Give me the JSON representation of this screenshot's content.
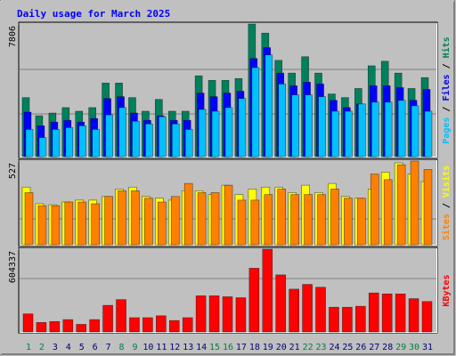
{
  "chart_data": [
    {
      "type": "bar",
      "title": "Daily usage for March 2025",
      "categories": [
        "1",
        "2",
        "3",
        "4",
        "5",
        "6",
        "7",
        "8",
        "9",
        "10",
        "11",
        "12",
        "13",
        "14",
        "15",
        "16",
        "17",
        "18",
        "19",
        "20",
        "21",
        "22",
        "23",
        "24",
        "25",
        "26",
        "27",
        "28",
        "29",
        "30",
        "31"
      ],
      "category_colors": [
        "#008040",
        "#008040",
        "#000080",
        "#000080",
        "#000080",
        "#000080",
        "#000080",
        "#008040",
        "#008040",
        "#000080",
        "#000080",
        "#000080",
        "#000080",
        "#000080",
        "#008040",
        "#008040",
        "#000080",
        "#000080",
        "#000080",
        "#000080",
        "#000080",
        "#008040",
        "#008040",
        "#000080",
        "#000080",
        "#000080",
        "#000080",
        "#000080",
        "#008040",
        "#008040",
        "#000080"
      ],
      "legend_separator": " / ",
      "ylim": [
        0,
        7806
      ],
      "yticks": [
        7806
      ],
      "series": [
        {
          "name": "Hits",
          "color": "#00805c",
          "values": [
            3475,
            2406,
            2566,
            2887,
            2673,
            2887,
            4331,
            4331,
            3475,
            2673,
            3368,
            2673,
            2673,
            4758,
            4491,
            4491,
            4598,
            7806,
            7271,
            5667,
            4918,
            5881,
            4918,
            3689,
            3475,
            4010,
            5346,
            5614,
            4918,
            4010,
            4651
          ]
        },
        {
          "name": "Files",
          "color": "#0000ff",
          "values": [
            2620,
            1818,
            2032,
            2139,
            2032,
            2245,
            3422,
            3529,
            2566,
            2139,
            2406,
            2139,
            2139,
            3743,
            3529,
            3743,
            3850,
            5774,
            6416,
            4918,
            4170,
            4384,
            4277,
            3315,
            2887,
            3101,
            4170,
            4170,
            4063,
            3315,
            3956
          ]
        },
        {
          "name": "Pages",
          "color": "#00c0ff",
          "values": [
            1604,
            1123,
            1604,
            1711,
            1818,
            1604,
            2459,
            2887,
            2085,
            1925,
            2352,
            1925,
            1604,
            2780,
            2673,
            2887,
            3422,
            5240,
            5988,
            4277,
            3636,
            3636,
            3529,
            2673,
            2673,
            3101,
            3208,
            3208,
            3315,
            2994,
            2673
          ]
        }
      ]
    },
    {
      "type": "bar",
      "ylim": [
        0,
        527
      ],
      "yticks": [
        527
      ],
      "series": [
        {
          "name": "Visits",
          "color": "#ffff00",
          "values": [
            363,
            258,
            252,
            269,
            281,
            281,
            304,
            351,
            363,
            304,
            293,
            281,
            340,
            340,
            316,
            375,
            316,
            351,
            363,
            363,
            328,
            375,
            328,
            386,
            304,
            293,
            351,
            457,
            516,
            445,
            398
          ]
        },
        {
          "name": "Sites",
          "color": "#ff8000",
          "values": [
            328,
            246,
            246,
            269,
            269,
            258,
            304,
            340,
            340,
            293,
            269,
            304,
            386,
            328,
            328,
            375,
            281,
            281,
            316,
            351,
            316,
            316,
            316,
            351,
            293,
            293,
            445,
            410,
            504,
            527,
            474
          ]
        }
      ]
    },
    {
      "type": "bar",
      "ylim": [
        0,
        604337
      ],
      "yticks": [
        604337
      ],
      "series": [
        {
          "name": "KBytes",
          "color": "#ff0000",
          "values": [
            132000,
            69500,
            76400,
            90300,
            55600,
            90300,
            194500,
            236200,
            104200,
            104200,
            118100,
            83400,
            104200,
            264000,
            264000,
            257000,
            250100,
            465400,
            604337,
            416800,
            312600,
            347300,
            326500,
            180600,
            180600,
            187600,
            284800,
            277900,
            277900,
            243100,
            222300
          ]
        }
      ]
    }
  ]
}
